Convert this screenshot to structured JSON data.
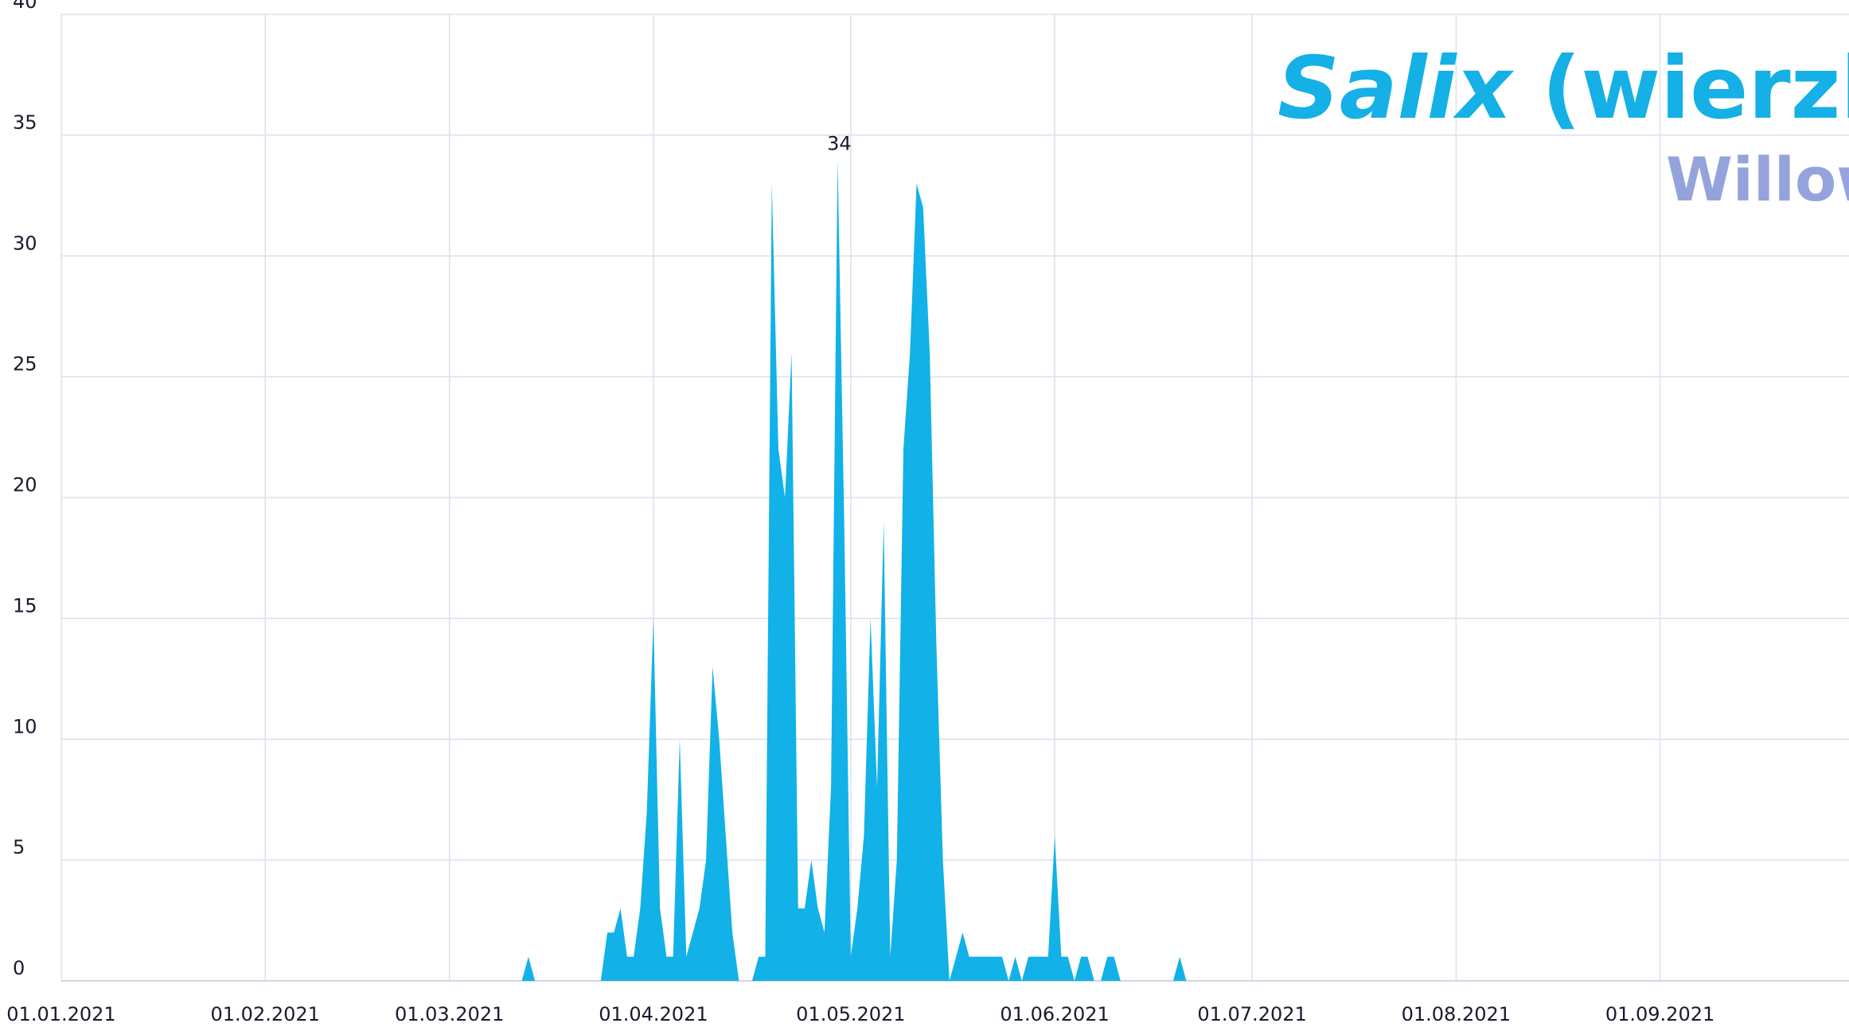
{
  "chart_data": {
    "type": "area",
    "title": {
      "genus": "Salix",
      "common": "(wierzba)"
    },
    "subtitle": "Willow",
    "color": "#12b1e7",
    "grid": true,
    "x": [
      "2021-03-12",
      "2021-03-13",
      "2021-03-14",
      "2021-03-15",
      "2021-03-16",
      "2021-03-17",
      "2021-03-18",
      "2021-03-19",
      "2021-03-20",
      "2021-03-21",
      "2021-03-22",
      "2021-03-23",
      "2021-03-24",
      "2021-03-25",
      "2021-03-26",
      "2021-03-27",
      "2021-03-28",
      "2021-03-29",
      "2021-03-30",
      "2021-03-31",
      "2021-04-01",
      "2021-04-02",
      "2021-04-03",
      "2021-04-04",
      "2021-04-05",
      "2021-04-06",
      "2021-04-07",
      "2021-04-08",
      "2021-04-09",
      "2021-04-10",
      "2021-04-11",
      "2021-04-12",
      "2021-04-13",
      "2021-04-14",
      "2021-04-15",
      "2021-04-16",
      "2021-04-17",
      "2021-04-18",
      "2021-04-19",
      "2021-04-20",
      "2021-04-21",
      "2021-04-22",
      "2021-04-23",
      "2021-04-24",
      "2021-04-25",
      "2021-04-26",
      "2021-04-27",
      "2021-04-28",
      "2021-04-29",
      "2021-04-30",
      "2021-05-01",
      "2021-05-02",
      "2021-05-03",
      "2021-05-04",
      "2021-05-05",
      "2021-05-06",
      "2021-05-07",
      "2021-05-08",
      "2021-05-09",
      "2021-05-10",
      "2021-05-11",
      "2021-05-12",
      "2021-05-13",
      "2021-05-14",
      "2021-05-15",
      "2021-05-16",
      "2021-05-17",
      "2021-05-18",
      "2021-05-19",
      "2021-05-20",
      "2021-05-21",
      "2021-05-22",
      "2021-05-23",
      "2021-05-24",
      "2021-05-25",
      "2021-05-26",
      "2021-05-27",
      "2021-05-28",
      "2021-05-29",
      "2021-05-30",
      "2021-05-31",
      "2021-06-01",
      "2021-06-02",
      "2021-06-03",
      "2021-06-04",
      "2021-06-05",
      "2021-06-06",
      "2021-06-07",
      "2021-06-08",
      "2021-06-09",
      "2021-06-10",
      "2021-06-11",
      "2021-06-12",
      "2021-06-13",
      "2021-06-14",
      "2021-06-15",
      "2021-06-16",
      "2021-06-17",
      "2021-06-18",
      "2021-06-19",
      "2021-06-20",
      "2021-06-21",
      "2021-06-22"
    ],
    "values": [
      0,
      1,
      0,
      0,
      0,
      0,
      0,
      0,
      0,
      0,
      0,
      0,
      0,
      2,
      2,
      3,
      1,
      1,
      3,
      7,
      15,
      3,
      1,
      1,
      10,
      1,
      2,
      3,
      5,
      13,
      10,
      6,
      2,
      0,
      0,
      0,
      1,
      1,
      33,
      22,
      20,
      26,
      3,
      3,
      5,
      3,
      2,
      8,
      34,
      19,
      1,
      3,
      6,
      15,
      8,
      19,
      1,
      5,
      22,
      26,
      33,
      32,
      26,
      14,
      5,
      0,
      1,
      2,
      1,
      1,
      1,
      1,
      1,
      1,
      0,
      1,
      0,
      1,
      1,
      1,
      1,
      6,
      1,
      1,
      0,
      1,
      1,
      0,
      0,
      1,
      1,
      0,
      0,
      0,
      0,
      0,
      0,
      0,
      0,
      0,
      1,
      0,
      0
    ],
    "labeled_points": [
      48
    ],
    "xlim": [
      "2021-01-01",
      "2021-09-29"
    ],
    "xticks": [
      {
        "value": "2021-01-01",
        "label": "01.01.2021"
      },
      {
        "value": "2021-02-01",
        "label": "01.02.2021"
      },
      {
        "value": "2021-03-01",
        "label": "01.03.2021"
      },
      {
        "value": "2021-04-01",
        "label": "01.04.2021"
      },
      {
        "value": "2021-05-01",
        "label": "01.05.2021"
      },
      {
        "value": "2021-06-01",
        "label": "01.06.2021"
      },
      {
        "value": "2021-07-01",
        "label": "01.07.2021"
      },
      {
        "value": "2021-08-01",
        "label": "01.08.2021"
      },
      {
        "value": "2021-09-01",
        "label": "01.09.2021"
      }
    ],
    "ylim": [
      0,
      40
    ],
    "yticks": [
      0,
      5,
      10,
      15,
      20,
      25,
      30,
      35,
      40
    ]
  }
}
